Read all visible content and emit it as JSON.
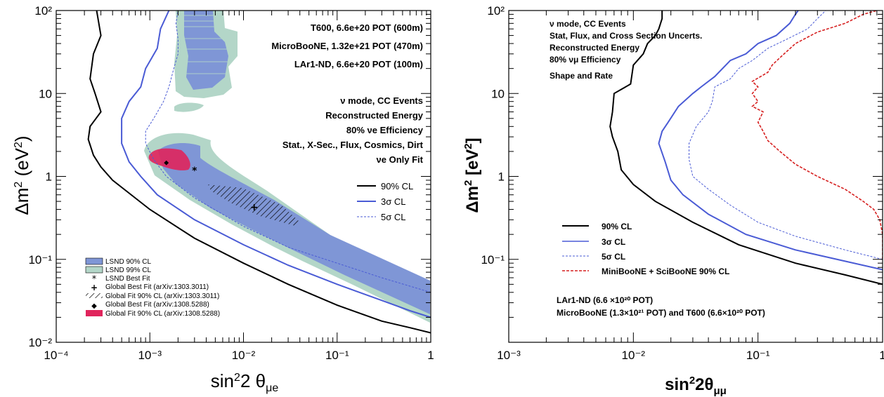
{
  "chart_data": [
    {
      "type": "line",
      "scale": "log-log",
      "xlabel": "sin²2 θμe",
      "ylabel": "Δm² (eV²)",
      "xlim": [
        0.0001,
        1
      ],
      "ylim": [
        0.01,
        100
      ],
      "x_ticks": [
        "10⁻⁴",
        "10⁻³",
        "10⁻²",
        "10⁻¹",
        "1"
      ],
      "y_ticks": [
        "10⁻²",
        "10⁻¹",
        "1",
        "10",
        "10²"
      ],
      "annotations": [
        "T600, 6.6e+20 POT (600m)",
        "MicroBooNE, 1.32e+21 POT (470m)",
        "LAr1-ND, 6.6e+20 POT (100m)",
        "ν mode, CC Events",
        "Reconstructed Energy",
        "80% νe Efficiency",
        "Stat., X-Sec., Flux, Cosmics, Dirt",
        "νe Only Fit"
      ],
      "legend_curves": [
        "90% CL",
        "3σ CL",
        "5σ CL"
      ],
      "legend_regions": [
        "LSND 90% CL",
        "LSND 99% CL",
        "LSND Best Fit",
        "Global Best Fit (arXiv:1303.3011)",
        "Global Fit 90% CL (arXiv:1303.3011)",
        "Global Best Fit (arXiv:1308.5288)",
        "Global Fit 90% CL (arXiv:1308.5288)"
      ],
      "points": [
        {
          "name": "LSND Best Fit",
          "x": 0.003,
          "y": 1.2
        },
        {
          "name": "Global Best Fit (arXiv:1303.3011)",
          "x": 0.013,
          "y": 0.42
        },
        {
          "name": "Global Best Fit (arXiv:1308.5288)",
          "x": 0.0015,
          "y": 1.5
        }
      ],
      "series": [
        {
          "name": "90% CL",
          "color": "#000000",
          "style": "solid",
          "x": [
            1,
            0.6,
            0.3,
            0.1,
            0.03,
            0.01,
            0.003,
            0.001,
            0.0004,
            0.0003,
            0.00025,
            0.00022,
            0.00023,
            0.0003,
            0.00026,
            0.00023,
            0.00025,
            0.0003,
            0.00027
          ],
          "y": [
            0.013,
            0.015,
            0.018,
            0.028,
            0.05,
            0.09,
            0.18,
            0.4,
            0.9,
            1.3,
            1.8,
            2.8,
            4,
            6,
            10,
            15,
            30,
            50,
            100
          ]
        },
        {
          "name": "3σ CL",
          "color": "#4a5bd5",
          "style": "solid",
          "x": [
            1,
            0.6,
            0.3,
            0.1,
            0.03,
            0.01,
            0.003,
            0.0012,
            0.0008,
            0.0006,
            0.0005,
            0.0005,
            0.0006,
            0.0008,
            0.0009,
            0.0012,
            0.0013,
            0.0016
          ],
          "y": [
            0.02,
            0.024,
            0.032,
            0.05,
            0.085,
            0.15,
            0.3,
            0.6,
            1.0,
            1.5,
            2.5,
            5,
            8,
            12,
            20,
            35,
            60,
            100
          ]
        },
        {
          "name": "5σ CL",
          "color": "#4a5bd5",
          "style": "dashed",
          "x": [
            1,
            0.3,
            0.1,
            0.03,
            0.01,
            0.003,
            0.0015,
            0.0011,
            0.0009,
            0.0009,
            0.0011,
            0.0014,
            0.0016,
            0.0018,
            0.002,
            0.002,
            0.0019,
            0.002
          ],
          "y": [
            0.04,
            0.06,
            0.09,
            0.14,
            0.25,
            0.55,
            1.0,
            1.6,
            2.5,
            3.5,
            5,
            8,
            12,
            20,
            30,
            45,
            70,
            100
          ]
        }
      ],
      "regions": [
        {
          "name": "LSND 99% CL",
          "color": "#b3d6c8"
        },
        {
          "name": "LSND 90% CL",
          "color": "#7f96d6"
        },
        {
          "name": "Global Fit 90% CL (arXiv:1308.5288)",
          "color": "#e0245c"
        },
        {
          "name": "Global Fit 90% CL (arXiv:1303.3011)",
          "color": "#000000"
        }
      ]
    },
    {
      "type": "line",
      "scale": "log-log",
      "xlabel": "sin²2θμμ",
      "ylabel": "Δm² [eV²]",
      "xlim": [
        0.001,
        1
      ],
      "ylim": [
        0.01,
        100
      ],
      "x_ticks": [
        "10⁻³",
        "10⁻²",
        "10⁻¹",
        "1"
      ],
      "y_ticks": [
        "10⁻¹",
        "1",
        "10",
        "10²"
      ],
      "annotations": [
        "ν mode, CC Events",
        "Stat, Flux, and Cross Section Uncerts.",
        "Reconstructed Energy",
        "80% νμ Efficiency",
        "Shape and Rate",
        "LAr1-ND (6.6 ×10²⁰ POT)",
        "MicroBooNE (1.3×10²¹ POT) and T600 (6.6×10²⁰ POT)"
      ],
      "legend_curves": [
        "90% CL",
        "3σ CL",
        "5σ CL",
        "MiniBooNE + SciBooNE 90% CL"
      ],
      "series": [
        {
          "name": "90% CL",
          "color": "#000000",
          "style": "solid",
          "x": [
            1,
            0.5,
            0.2,
            0.07,
            0.03,
            0.015,
            0.01,
            0.008,
            0.0075,
            0.0068,
            0.0065,
            0.0068,
            0.007,
            0.0095,
            0.01,
            0.012,
            0.013,
            0.015,
            0.016,
            0.017,
            0.017
          ],
          "y": [
            0.05,
            0.065,
            0.09,
            0.15,
            0.28,
            0.5,
            0.8,
            1.2,
            2,
            3,
            4,
            6,
            10,
            13,
            22,
            30,
            40,
            50,
            60,
            80,
            100
          ]
        },
        {
          "name": "3σ CL",
          "color": "#4a5bd5",
          "style": "solid",
          "x": [
            1,
            0.5,
            0.2,
            0.08,
            0.04,
            0.025,
            0.02,
            0.018,
            0.016,
            0.017,
            0.019,
            0.023,
            0.03,
            0.035,
            0.045,
            0.06,
            0.08,
            0.1,
            0.14,
            0.18,
            0.2,
            0.21
          ],
          "y": [
            0.075,
            0.095,
            0.13,
            0.2,
            0.35,
            0.6,
            0.9,
            1.5,
            2.5,
            3.5,
            4.5,
            7,
            10,
            12,
            16,
            25,
            30,
            40,
            50,
            70,
            90,
            100
          ]
        },
        {
          "name": "5σ CL",
          "color": "#4a5bd5",
          "style": "dashed",
          "x": [
            1,
            0.5,
            0.2,
            0.1,
            0.06,
            0.04,
            0.03,
            0.028,
            0.028,
            0.032,
            0.04,
            0.043,
            0.045,
            0.06,
            0.07,
            0.09,
            0.12,
            0.17,
            0.25,
            0.3,
            0.35
          ],
          "y": [
            0.1,
            0.13,
            0.19,
            0.28,
            0.45,
            0.7,
            1.0,
            1.6,
            2.5,
            4,
            6,
            8,
            12,
            15,
            20,
            25,
            35,
            45,
            60,
            80,
            100
          ]
        },
        {
          "name": "MiniBooNE + SciBooNE 90% CL",
          "color": "#d62020",
          "style": "dashed",
          "x": [
            1,
            1,
            0.95,
            0.85,
            0.7,
            0.5,
            0.3,
            0.2,
            0.15,
            0.12,
            0.11,
            0.1,
            0.11,
            0.09,
            0.1,
            0.09,
            0.1,
            0.09,
            0.12,
            0.13,
            0.15,
            0.17,
            0.2,
            0.3,
            0.5,
            0.7,
            0.9
          ],
          "y": [
            0.1,
            0.2,
            0.3,
            0.4,
            0.5,
            0.7,
            1.0,
            1.4,
            2.0,
            2.7,
            3.5,
            4.5,
            6,
            7,
            8,
            10,
            12,
            14,
            18,
            22,
            27,
            32,
            40,
            55,
            70,
            90,
            100
          ]
        }
      ]
    }
  ]
}
